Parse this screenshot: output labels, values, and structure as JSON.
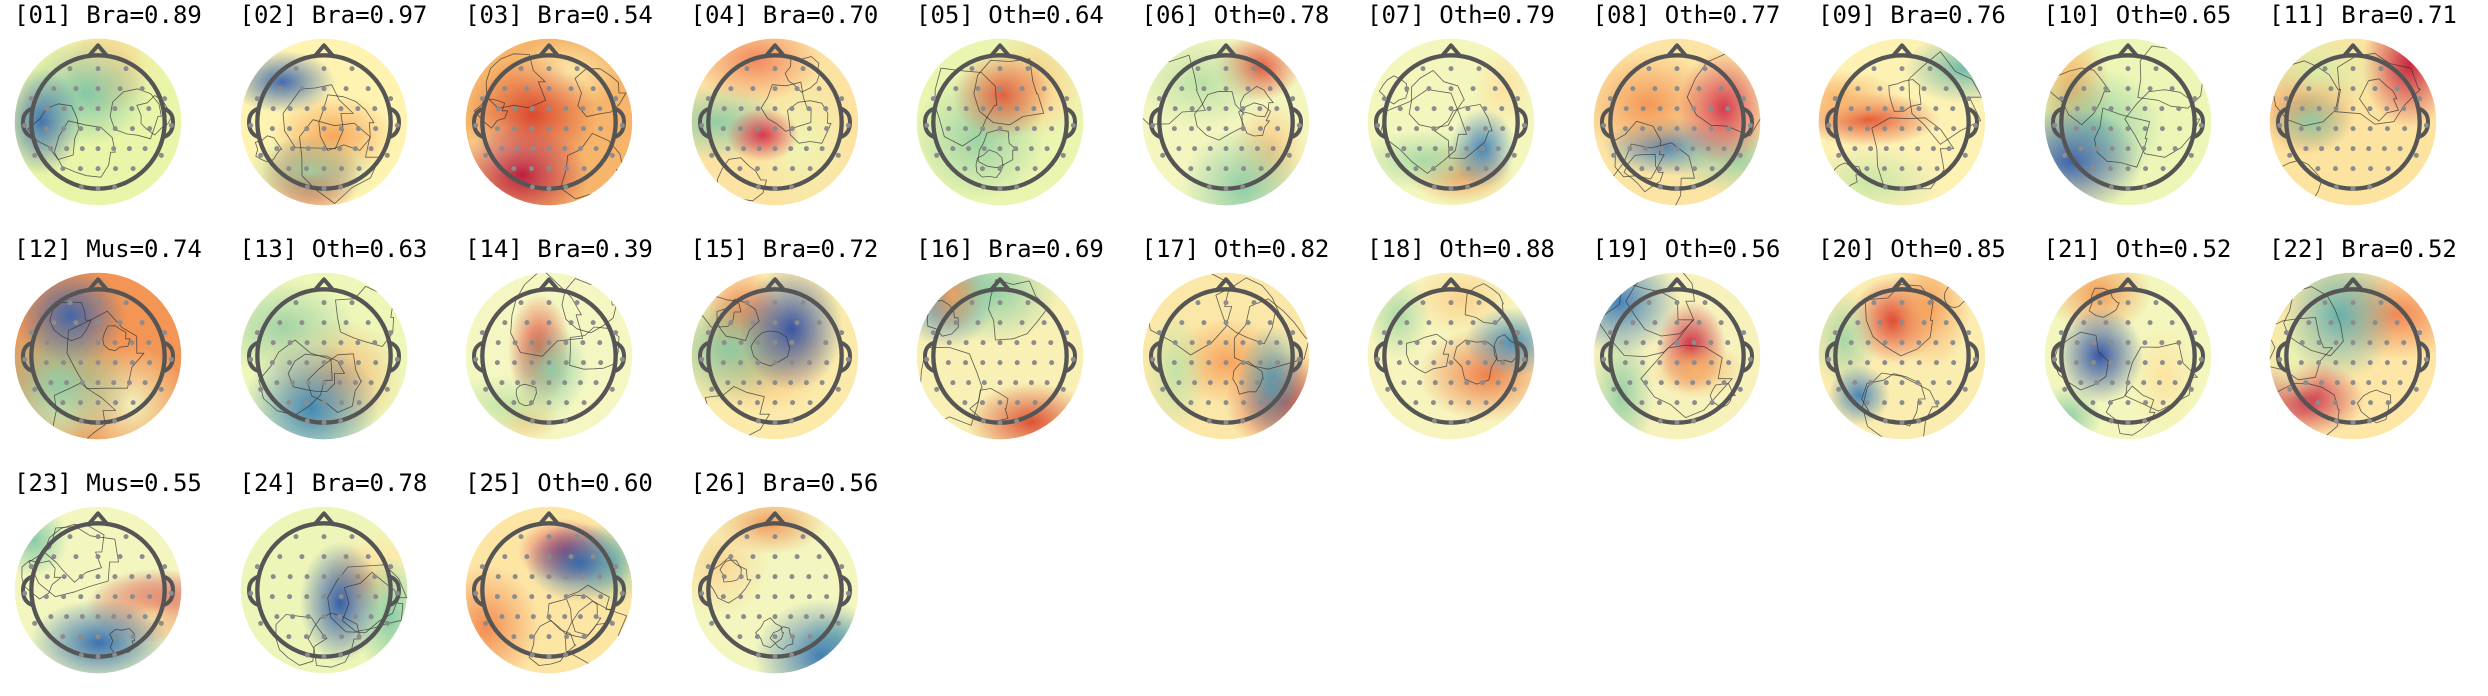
{
  "components": [
    {
      "label": "[01] Bra=0.89",
      "palette": [
        "#f2a55c",
        "#fbe3a0",
        "#e9f5a8",
        "#7dc7a8",
        "#3a6fb0"
      ]
    },
    {
      "label": "[02] Bra=0.97",
      "palette": [
        "#d7302a",
        "#f7a256",
        "#fef3b0",
        "#9fd4a3",
        "#3b66ad"
      ]
    },
    {
      "label": "[03] Bra=0.54",
      "palette": [
        "#f4f7c4",
        "#fdf0b0",
        "#f6b56b",
        "#d9432c",
        "#b8173a"
      ]
    },
    {
      "label": "[04] Bra=0.70",
      "palette": [
        "#8ccca6",
        "#eef6b4",
        "#fce3a2",
        "#f2845a",
        "#d6304b"
      ]
    },
    {
      "label": "[05] Oth=0.64",
      "palette": [
        "#fde9a8",
        "#f9cb86",
        "#eaf5b0",
        "#97d0a4",
        "#e25a3a"
      ]
    },
    {
      "label": "[06] Oth=0.78",
      "palette": [
        "#e44a34",
        "#f9c27c",
        "#f4f6bf",
        "#b9e0a6",
        "#8ccca6"
      ]
    },
    {
      "label": "[07] Oth=0.79",
      "palette": [
        "#f39b5a",
        "#fde1a0",
        "#f3f7bd",
        "#a7d9a6",
        "#3f7fb8"
      ]
    },
    {
      "label": "[08] Oth=0.77",
      "palette": [
        "#3b7fba",
        "#9dd2a6",
        "#fce5a4",
        "#f39352",
        "#d4324a"
      ]
    },
    {
      "label": "[09] Bra=0.76",
      "palette": [
        "#e4542f",
        "#f9b36a",
        "#fdf1b4",
        "#c6e6a6",
        "#6fb8a8"
      ]
    },
    {
      "label": "[10] Oth=0.65",
      "palette": [
        "#f5a759",
        "#fde6a6",
        "#edf6b6",
        "#8fcca6",
        "#3560ad"
      ]
    },
    {
      "label": "[11] Bra=0.71",
      "palette": [
        "#c61d3b",
        "#f4874f",
        "#fde3a0",
        "#d9efaa",
        "#8ccca6"
      ]
    },
    {
      "label": "[12] Mus=0.74",
      "palette": [
        "#f1f6c0",
        "#fdf2b6",
        "#f29555",
        "#8ccca6",
        "#3a64ad"
      ]
    },
    {
      "label": "[13] Oth=0.63",
      "palette": [
        "#f6b06a",
        "#fde8aa",
        "#eef6b8",
        "#9dd2a6",
        "#3c86b7"
      ]
    },
    {
      "label": "[14] Bra=0.39",
      "palette": [
        "#dd3d2f",
        "#f9c67f",
        "#f5f7c2",
        "#c3e6a8",
        "#8ccca6"
      ]
    },
    {
      "label": "[15] Bra=0.72",
      "palette": [
        "#e85b36",
        "#f9b066",
        "#fbeaaa",
        "#8acca5",
        "#2f4fa5"
      ]
    },
    {
      "label": "[16] Bra=0.69",
      "palette": [
        "#2f74b2",
        "#8fcfa6",
        "#f8f0b4",
        "#f6a25a",
        "#dc4a2e"
      ]
    },
    {
      "label": "[17] Oth=0.82",
      "palette": [
        "#d93b2e",
        "#f7a05a",
        "#fbe8a8",
        "#bfe3a6",
        "#4f9ab3"
      ]
    },
    {
      "label": "[18] Oth=0.88",
      "palette": [
        "#ee7a45",
        "#fbd18c",
        "#f7f5bd",
        "#a9d9a6",
        "#4a8cb5"
      ]
    },
    {
      "label": "[19] Oth=0.56",
      "palette": [
        "#c81e3a",
        "#f8b468",
        "#f7f1bb",
        "#94cfa5",
        "#3c7cb8"
      ]
    },
    {
      "label": "[20] Oth=0.85",
      "palette": [
        "#dc3d2c",
        "#f6a05a",
        "#fbecaf",
        "#a2d5a6",
        "#3e7fb8"
      ]
    },
    {
      "label": "[21] Oth=0.52",
      "palette": [
        "#f39a55",
        "#fde2a0",
        "#f3f7bd",
        "#8dcca6",
        "#2d4fa3"
      ]
    },
    {
      "label": "[22] Bra=0.52",
      "palette": [
        "#c51b3d",
        "#f2834e",
        "#fde6a6",
        "#e8f4b2",
        "#5fafae"
      ]
    },
    {
      "label": "[23] Mus=0.55",
      "palette": [
        "#d22e3a",
        "#fbe3a2",
        "#f3f7bf",
        "#82c8a6",
        "#2f6cb0"
      ]
    },
    {
      "label": "[24] Bra=0.78",
      "palette": [
        "#f7b86e",
        "#fde9aa",
        "#edf6b8",
        "#86c9a6",
        "#2d57a8"
      ]
    },
    {
      "label": "[25] Oth=0.60",
      "palette": [
        "#d6304b",
        "#f3894f",
        "#fde5a4",
        "#8dcca6",
        "#2e6aae"
      ]
    },
    {
      "label": "[26] Bra=0.56",
      "palette": [
        "#f2985a",
        "#fbd594",
        "#f3f6be",
        "#a3d6a6",
        "#3979b4"
      ]
    }
  ]
}
